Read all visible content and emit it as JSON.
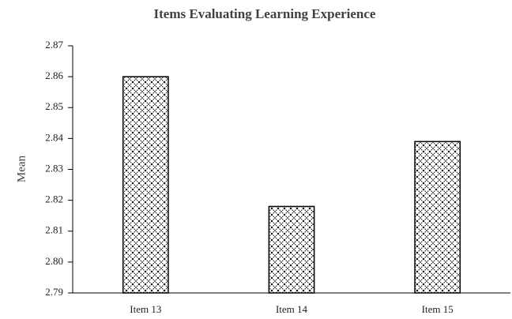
{
  "chart_data": {
    "type": "bar",
    "title": "Items Evaluating Learning Experience",
    "categories": [
      "Item 13",
      "Item 14",
      "Item 15"
    ],
    "values": [
      2.86,
      2.818,
      2.839
    ],
    "color": "#000000",
    "y_label": "Mean",
    "ylim": [
      2.79,
      2.87
    ],
    "yticks": [
      2.79,
      {
        "value": 2.8,
        "label": "2.80"
      },
      2.81,
      2.82,
      2.83,
      2.84,
      2.85,
      2.86,
      2.87
    ],
    "grid": false
  }
}
